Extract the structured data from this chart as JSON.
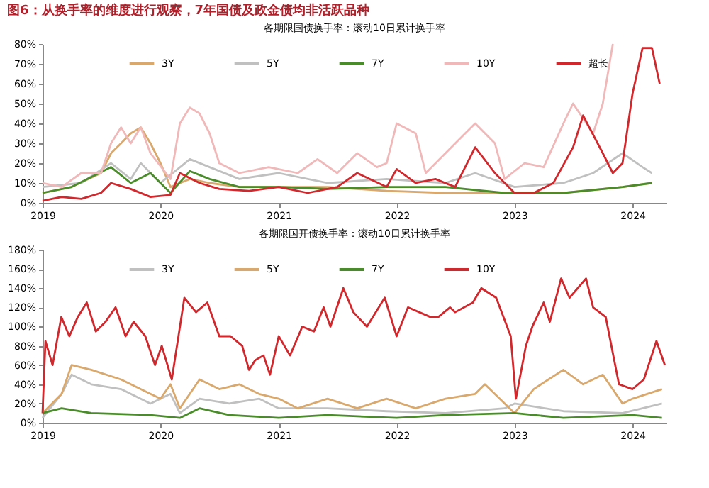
{
  "chart_data": [
    {
      "type": "line",
      "title": "图6：从换手率的维度进行观察，7年国债及政金债均非活跃品种",
      "subtitle": "各期限国债换手率：滚动10日累计换手率",
      "legend": "top",
      "grid": false,
      "marker": "none",
      "line_style": "solid",
      "xlim": [
        "2019-01-01",
        "2024-04-15"
      ],
      "xticks": [
        "2019",
        "2020",
        "2021",
        "2022",
        "2023",
        "2024"
      ],
      "ylim": [
        0,
        80
      ],
      "yticks": [
        {
          "value": 0,
          "label": "0%"
        },
        {
          "value": 10,
          "label": "10%"
        },
        {
          "value": 20,
          "label": "20%"
        },
        {
          "value": 30,
          "label": "30%"
        },
        {
          "value": 40,
          "label": "40%"
        },
        {
          "value": 50,
          "label": "50%"
        },
        {
          "value": 60,
          "label": "60%"
        },
        {
          "value": 70,
          "label": "70%"
        },
        {
          "value": 80,
          "label": "80%"
        }
      ],
      "series": [
        {
          "name": "3Y",
          "color": "#d9a86c",
          "x": [
            "2019-01",
            "2019-04",
            "2019-07",
            "2019-08",
            "2019-09",
            "2019-10",
            "2019-11",
            "2019-12",
            "2020-01",
            "2020-02",
            "2020-04",
            "2020-06",
            "2020-09",
            "2021-01",
            "2021-06",
            "2021-12",
            "2022-06",
            "2022-12",
            "2023-06",
            "2023-12",
            "2024-03"
          ],
          "values": [
            5,
            8,
            15,
            25,
            30,
            35,
            38,
            30,
            20,
            8,
            12,
            10,
            8,
            8,
            8,
            6,
            5,
            5,
            5,
            8,
            10
          ]
        },
        {
          "name": "5Y",
          "color": "#c0c0c0",
          "x": [
            "2019-01",
            "2019-05",
            "2019-08",
            "2019-10",
            "2019-11",
            "2020-01",
            "2020-04",
            "2020-06",
            "2020-09",
            "2021-01",
            "2021-06",
            "2021-12",
            "2022-06",
            "2022-09",
            "2023-01",
            "2023-06",
            "2023-09",
            "2023-12",
            "2024-02",
            "2024-03"
          ],
          "values": [
            8,
            10,
            20,
            12,
            20,
            10,
            22,
            18,
            12,
            15,
            10,
            12,
            10,
            15,
            8,
            10,
            15,
            25,
            18,
            15
          ]
        },
        {
          "name": "7Y",
          "color": "#4a8c2a",
          "x": [
            "2019-01",
            "2019-04",
            "2019-08",
            "2019-10",
            "2019-12",
            "2020-02",
            "2020-04",
            "2020-06",
            "2020-09",
            "2021-01",
            "2021-06",
            "2021-12",
            "2022-06",
            "2022-12",
            "2023-06",
            "2023-12",
            "2024-03"
          ],
          "values": [
            5,
            8,
            18,
            10,
            15,
            5,
            16,
            12,
            8,
            8,
            7,
            8,
            8,
            5,
            5,
            8,
            10
          ]
        },
        {
          "name": "10Y",
          "color": "#f0b8b8",
          "x": [
            "2019-01",
            "2019-03",
            "2019-05",
            "2019-07",
            "2019-08",
            "2019-09",
            "2019-10",
            "2019-11",
            "2019-12",
            "2020-02",
            "2020-03",
            "2020-04",
            "2020-05",
            "2020-06",
            "2020-07",
            "2020-09",
            "2020-12",
            "2021-03",
            "2021-05",
            "2021-07",
            "2021-09",
            "2021-11",
            "2021-12",
            "2022-01",
            "2022-03",
            "2022-04",
            "2022-06",
            "2022-08",
            "2022-09",
            "2022-11",
            "2022-12",
            "2023-02",
            "2023-04",
            "2023-06",
            "2023-07",
            "2023-09",
            "2023-10",
            "2023-11"
          ],
          "values": [
            10,
            8,
            15,
            15,
            30,
            38,
            30,
            38,
            25,
            12,
            40,
            48,
            45,
            35,
            20,
            15,
            18,
            15,
            22,
            15,
            25,
            18,
            20,
            40,
            35,
            15,
            25,
            35,
            40,
            30,
            12,
            20,
            18,
            40,
            50,
            35,
            50,
            80
          ]
        },
        {
          "name": "超长",
          "color": "#d0282c",
          "x": [
            "2019-01",
            "2019-03",
            "2019-05",
            "2019-07",
            "2019-08",
            "2019-10",
            "2019-12",
            "2020-02",
            "2020-03",
            "2020-05",
            "2020-07",
            "2020-10",
            "2021-01",
            "2021-04",
            "2021-07",
            "2021-09",
            "2021-12",
            "2022-01",
            "2022-03",
            "2022-05",
            "2022-07",
            "2022-09",
            "2022-11",
            "2023-01",
            "2023-03",
            "2023-05",
            "2023-07",
            "2023-08",
            "2023-10",
            "2023-11",
            "2023-12",
            "2024-01",
            "2024-02",
            "2024-03",
            "2024-03-25"
          ],
          "values": [
            1,
            3,
            2,
            5,
            10,
            7,
            3,
            4,
            15,
            10,
            7,
            6,
            8,
            5,
            8,
            15,
            8,
            17,
            10,
            12,
            8,
            28,
            15,
            5,
            5,
            10,
            28,
            44,
            25,
            15,
            20,
            55,
            78,
            78,
            60
          ]
        }
      ]
    },
    {
      "type": "line",
      "title": "各期限国开债换手率：滚动10日累计换手率",
      "legend": "top",
      "grid": false,
      "marker": "none",
      "line_style": "solid",
      "xlim": [
        "2019-01-01",
        "2024-04-15"
      ],
      "xticks": [
        "2019",
        "2020",
        "2021",
        "2022",
        "2023",
        "2024"
      ],
      "ylim": [
        0,
        180
      ],
      "yticks": [
        {
          "value": 0,
          "label": "0%"
        },
        {
          "value": 20,
          "label": "20%"
        },
        {
          "value": 40,
          "label": "40%"
        },
        {
          "value": 60,
          "label": "60%"
        },
        {
          "value": 80,
          "label": "80%"
        },
        {
          "value": 100,
          "label": "100%"
        },
        {
          "value": 120,
          "label": "120%"
        },
        {
          "value": 140,
          "label": "140%"
        },
        {
          "value": 160,
          "label": "160%"
        },
        {
          "value": 180,
          "label": "180%"
        }
      ],
      "series": [
        {
          "name": "3Y",
          "color": "#c0c0c0",
          "x": [
            "2019-01",
            "2019-03",
            "2019-04",
            "2019-06",
            "2019-09",
            "2019-12",
            "2020-02",
            "2020-03",
            "2020-05",
            "2020-08",
            "2020-11",
            "2021-01",
            "2021-06",
            "2021-12",
            "2022-06",
            "2022-12",
            "2023-01",
            "2023-06",
            "2023-12",
            "2024-02",
            "2024-04"
          ],
          "values": [
            5,
            30,
            50,
            40,
            35,
            20,
            30,
            10,
            25,
            20,
            25,
            15,
            15,
            12,
            10,
            15,
            20,
            12,
            10,
            15,
            20
          ]
        },
        {
          "name": "5Y",
          "color": "#d9a86c",
          "x": [
            "2019-01",
            "2019-03",
            "2019-04",
            "2019-06",
            "2019-09",
            "2019-12",
            "2020-01",
            "2020-02",
            "2020-03",
            "2020-05",
            "2020-07",
            "2020-09",
            "2020-11",
            "2021-01",
            "2021-03",
            "2021-06",
            "2021-09",
            "2021-12",
            "2022-03",
            "2022-06",
            "2022-09",
            "2022-10",
            "2023-01",
            "2023-03",
            "2023-06",
            "2023-08",
            "2023-10",
            "2023-12",
            "2024-01",
            "2024-04"
          ],
          "values": [
            10,
            30,
            60,
            55,
            45,
            30,
            25,
            40,
            15,
            45,
            35,
            40,
            30,
            25,
            15,
            25,
            15,
            25,
            15,
            25,
            30,
            40,
            10,
            35,
            55,
            40,
            50,
            20,
            25,
            35
          ]
        },
        {
          "name": "7Y",
          "color": "#4a8c2a",
          "x": [
            "2019-01",
            "2019-03",
            "2019-06",
            "2019-12",
            "2020-03",
            "2020-05",
            "2020-08",
            "2021-01",
            "2021-06",
            "2022-01",
            "2022-06",
            "2023-01",
            "2023-06",
            "2024-01",
            "2024-04"
          ],
          "values": [
            10,
            15,
            10,
            8,
            5,
            15,
            8,
            5,
            8,
            5,
            8,
            10,
            5,
            8,
            5
          ]
        },
        {
          "name": "10Y",
          "color": "#d0282c",
          "x": [
            "2019-01-01",
            "2019-01-10",
            "2019-02-01",
            "2019-02-28",
            "2019-03-25",
            "2019-04-20",
            "2019-05-18",
            "2019-06-15",
            "2019-07-15",
            "2019-08-15",
            "2019-09-15",
            "2019-10-10",
            "2019-11-15",
            "2019-12-15",
            "2020-01-05",
            "2020-02-05",
            "2020-03-15",
            "2020-04-20",
            "2020-05-25",
            "2020-07-01",
            "2020-08-05",
            "2020-09-10",
            "2020-10-01",
            "2020-10-20",
            "2020-11-15",
            "2020-12-05",
            "2021-01-01",
            "2021-02-05",
            "2021-03-15",
            "2021-04-20",
            "2021-05-20",
            "2021-06-10",
            "2021-07-20",
            "2021-08-20",
            "2021-10-01",
            "2021-11-25",
            "2022-01-01",
            "2022-02-05",
            "2022-04-15",
            "2022-05-10",
            "2022-06-15",
            "2022-07-01",
            "2022-08-25",
            "2022-09-20",
            "2022-11-05",
            "2022-12-20",
            "2023-01-05",
            "2023-02-05",
            "2023-02-25",
            "2023-04-01",
            "2023-04-20",
            "2023-05-25",
            "2023-06-20",
            "2023-08-10",
            "2023-09-01",
            "2023-10-10",
            "2023-11-20",
            "2024-01-01",
            "2024-02-05",
            "2024-03-15",
            "2024-04-10"
          ],
          "values": [
            10,
            85,
            60,
            110,
            90,
            110,
            125,
            95,
            105,
            120,
            90,
            105,
            90,
            60,
            80,
            45,
            130,
            115,
            125,
            90,
            90,
            80,
            55,
            65,
            70,
            50,
            90,
            70,
            100,
            95,
            120,
            100,
            140,
            115,
            100,
            130,
            90,
            120,
            110,
            110,
            120,
            115,
            125,
            140,
            130,
            90,
            25,
            80,
            100,
            125,
            105,
            150,
            130,
            150,
            120,
            110,
            40,
            35,
            45,
            85,
            60
          ]
        }
      ]
    }
  ]
}
